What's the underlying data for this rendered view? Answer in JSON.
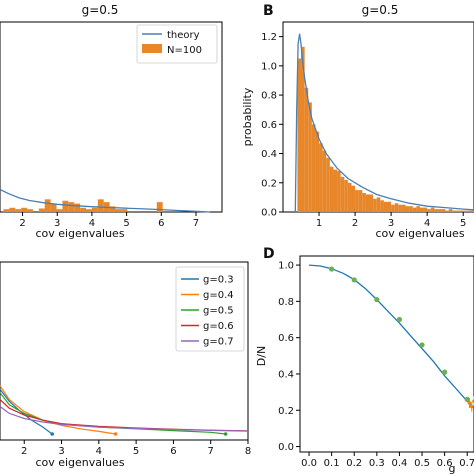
{
  "chart_data": [
    {
      "id": "A",
      "type": "bar",
      "title": "g=0.5",
      "xlabel": "cov eigenvalues",
      "ylabel": "",
      "xlim": [
        1.35,
        7.75
      ],
      "ylim": [
        0,
        1.35
      ],
      "xticks": [
        2,
        3,
        4,
        5,
        6,
        7
      ],
      "legend": {
        "position": "top-right",
        "entries": [
          "theory",
          "N=100"
        ]
      },
      "series": [
        {
          "name": "N=100",
          "kind": "histogram",
          "bin_width": 0.17,
          "bins": [
            [
              1.45,
              0.02
            ],
            [
              1.62,
              0.03
            ],
            [
              1.79,
              0.02
            ],
            [
              1.96,
              0.03
            ],
            [
              2.13,
              0.02
            ],
            [
              2.47,
              0.025
            ],
            [
              2.64,
              0.09
            ],
            [
              2.81,
              0.06
            ],
            [
              2.98,
              0.02
            ],
            [
              3.15,
              0.08
            ],
            [
              3.32,
              0.07
            ],
            [
              3.49,
              0.06
            ],
            [
              3.66,
              0.03
            ],
            [
              3.83,
              0.02
            ],
            [
              4.0,
              0.03
            ],
            [
              4.17,
              0.09
            ],
            [
              4.34,
              0.07
            ],
            [
              4.51,
              0.04
            ],
            [
              4.68,
              0.02
            ],
            [
              4.85,
              0.02
            ],
            [
              5.87,
              0.07
            ]
          ]
        },
        {
          "name": "theory",
          "kind": "line",
          "x": [
            1.35,
            1.6,
            1.9,
            2.2,
            2.6,
            3.0,
            3.5,
            4.0,
            4.5,
            5.0,
            5.5,
            6.0,
            6.5,
            7.0,
            7.4
          ],
          "y": [
            0.16,
            0.13,
            0.1,
            0.082,
            0.066,
            0.055,
            0.045,
            0.038,
            0.032,
            0.027,
            0.022,
            0.017,
            0.011,
            0.005,
            0.0
          ]
        }
      ]
    },
    {
      "id": "B",
      "type": "bar",
      "title": "g=0.5",
      "xlabel": "cov eigenvalues",
      "ylabel": "probability",
      "xlim": [
        0,
        5.3
      ],
      "ylim": [
        0,
        1.3
      ],
      "xticks": [
        1,
        2,
        3,
        4,
        5
      ],
      "yticks": [
        0.0,
        0.2,
        0.4,
        0.6,
        0.8,
        1.0,
        1.2
      ],
      "series": [
        {
          "name": "",
          "kind": "histogram",
          "bin_width": 0.1,
          "bins": [
            [
              0.3,
              0.0
            ],
            [
              0.4,
              1.05
            ],
            [
              0.5,
              1.13
            ],
            [
              0.6,
              0.85
            ],
            [
              0.7,
              0.75
            ],
            [
              0.8,
              0.6
            ],
            [
              0.9,
              0.55
            ],
            [
              1.0,
              0.47
            ],
            [
              1.1,
              0.42
            ],
            [
              1.2,
              0.37
            ],
            [
              1.3,
              0.31
            ],
            [
              1.4,
              0.29
            ],
            [
              1.5,
              0.28
            ],
            [
              1.6,
              0.24
            ],
            [
              1.7,
              0.22
            ],
            [
              1.8,
              0.2
            ],
            [
              1.9,
              0.18
            ],
            [
              2.0,
              0.15
            ],
            [
              2.1,
              0.15
            ],
            [
              2.2,
              0.13
            ],
            [
              2.3,
              0.12
            ],
            [
              2.4,
              0.12
            ],
            [
              2.5,
              0.09
            ],
            [
              2.6,
              0.1
            ],
            [
              2.7,
              0.08
            ],
            [
              2.8,
              0.07
            ],
            [
              2.9,
              0.07
            ],
            [
              3.0,
              0.05
            ],
            [
              3.1,
              0.06
            ],
            [
              3.2,
              0.05
            ],
            [
              3.3,
              0.05
            ],
            [
              3.4,
              0.04
            ],
            [
              3.5,
              0.04
            ],
            [
              3.6,
              0.03
            ],
            [
              3.7,
              0.04
            ],
            [
              3.8,
              0.03
            ],
            [
              3.9,
              0.03
            ],
            [
              4.0,
              0.02
            ],
            [
              4.1,
              0.03
            ],
            [
              4.2,
              0.02
            ],
            [
              4.3,
              0.02
            ],
            [
              4.4,
              0.02
            ],
            [
              4.5,
              0.01
            ],
            [
              4.6,
              0.02
            ],
            [
              4.7,
              0.01
            ],
            [
              4.8,
              0.01
            ],
            [
              4.9,
              0.01
            ],
            [
              5.0,
              0.01
            ],
            [
              5.1,
              0.01
            ],
            [
              5.2,
              0.01
            ]
          ]
        },
        {
          "name": "",
          "kind": "line",
          "x": [
            0.34,
            0.38,
            0.42,
            0.46,
            0.5,
            0.55,
            0.6,
            0.7,
            0.8,
            1.0,
            1.2,
            1.5,
            1.8,
            2.2,
            2.6,
            3.0,
            3.5,
            4.0,
            4.5,
            5.0,
            5.3
          ],
          "y": [
            0.0,
            0.7,
            1.15,
            1.22,
            1.15,
            1.02,
            0.92,
            0.76,
            0.64,
            0.5,
            0.4,
            0.3,
            0.23,
            0.17,
            0.12,
            0.09,
            0.06,
            0.04,
            0.03,
            0.02,
            0.015
          ]
        }
      ]
    },
    {
      "id": "C",
      "type": "line",
      "title": "",
      "xlabel": "cov eigenvalues",
      "ylabel": "",
      "xlim": [
        1.35,
        8.0
      ],
      "ylim": [
        0,
        1.0
      ],
      "xticks": [
        2,
        3,
        4,
        5,
        6,
        7,
        8
      ],
      "legend": {
        "position": "top-right",
        "entries": [
          "g=0.3",
          "g=0.4",
          "g=0.5",
          "g=0.6",
          "g=0.7"
        ]
      },
      "series": [
        {
          "name": "g=0.3",
          "color": "#1f77b4",
          "x": [
            1.35,
            1.6,
            1.9,
            2.2,
            2.5,
            2.75
          ],
          "y": [
            0.26,
            0.19,
            0.13,
            0.08,
            0.04,
            0.0
          ]
        },
        {
          "name": "g=0.4",
          "color": "#ff7f0e",
          "x": [
            1.35,
            1.6,
            2.0,
            2.5,
            3.0,
            3.5,
            4.0,
            4.45
          ],
          "y": [
            0.28,
            0.2,
            0.13,
            0.08,
            0.05,
            0.03,
            0.015,
            0.0
          ]
        },
        {
          "name": "g=0.5",
          "color": "#2ca02c",
          "x": [
            1.35,
            1.6,
            2.0,
            2.5,
            3.0,
            4.0,
            5.0,
            6.0,
            7.0,
            7.4
          ],
          "y": [
            0.24,
            0.17,
            0.12,
            0.08,
            0.06,
            0.04,
            0.03,
            0.02,
            0.01,
            0.0
          ]
        },
        {
          "name": "g=0.6",
          "color": "#d62728",
          "x": [
            1.35,
            1.6,
            2.0,
            2.5,
            3.0,
            4.0,
            5.0,
            6.0,
            7.0,
            8.0
          ],
          "y": [
            0.2,
            0.15,
            0.11,
            0.08,
            0.06,
            0.045,
            0.035,
            0.028,
            0.022,
            0.018
          ]
        },
        {
          "name": "g=0.7",
          "color": "#9467bd",
          "x": [
            1.35,
            1.6,
            2.0,
            2.5,
            3.0,
            4.0,
            5.0,
            6.0,
            7.0,
            8.0
          ],
          "y": [
            0.16,
            0.12,
            0.09,
            0.07,
            0.055,
            0.04,
            0.032,
            0.026,
            0.021,
            0.017
          ]
        }
      ]
    },
    {
      "id": "D",
      "type": "line",
      "title": "",
      "xlabel": "g",
      "ylabel": "D/N",
      "xlim": [
        -0.04,
        0.73
      ],
      "ylim": [
        -0.03,
        1.05
      ],
      "xticks": [
        0.0,
        0.1,
        0.2,
        0.3,
        0.4,
        0.5,
        0.6,
        0.7
      ],
      "yticks": [
        0.0,
        0.2,
        0.4,
        0.6,
        0.8,
        1.0
      ],
      "series": [
        {
          "name": "",
          "kind": "line",
          "color": "#1f77b4",
          "x": [
            0.0,
            0.05,
            0.1,
            0.15,
            0.2,
            0.25,
            0.3,
            0.35,
            0.4,
            0.45,
            0.5,
            0.55,
            0.6,
            0.65,
            0.7,
            0.73
          ],
          "y": [
            1.0,
            0.995,
            0.98,
            0.955,
            0.92,
            0.87,
            0.81,
            0.745,
            0.68,
            0.61,
            0.54,
            0.47,
            0.39,
            0.32,
            0.25,
            0.21
          ]
        },
        {
          "name": "",
          "kind": "scatter",
          "color": "#2ca02c",
          "x": [
            0.1,
            0.2,
            0.3,
            0.4,
            0.5,
            0.6,
            0.7
          ],
          "y": [
            0.978,
            0.918,
            0.81,
            0.7,
            0.56,
            0.41,
            0.26
          ]
        },
        {
          "name": "",
          "kind": "scatter",
          "color": "#ff7f0e",
          "x": [
            0.71,
            0.72,
            0.73
          ],
          "y": [
            0.24,
            0.22,
            0.25
          ]
        }
      ]
    }
  ],
  "panels": {
    "A": {
      "title": "g=0.5",
      "xlabel": "cov eigenvalues"
    },
    "B": {
      "letter": "B",
      "title": "g=0.5",
      "xlabel": "cov eigenvalues",
      "ylabel": "probability"
    },
    "C": {
      "xlabel": "cov eigenvalues"
    },
    "D": {
      "letter": "D",
      "xlabel": "g",
      "ylabel": "D/N"
    }
  },
  "colors": {
    "theory": "#4a7fb5",
    "hist": "#e8862a",
    "marker_green": "#6ab04c",
    "marker_orange": "#ff7f0e"
  }
}
